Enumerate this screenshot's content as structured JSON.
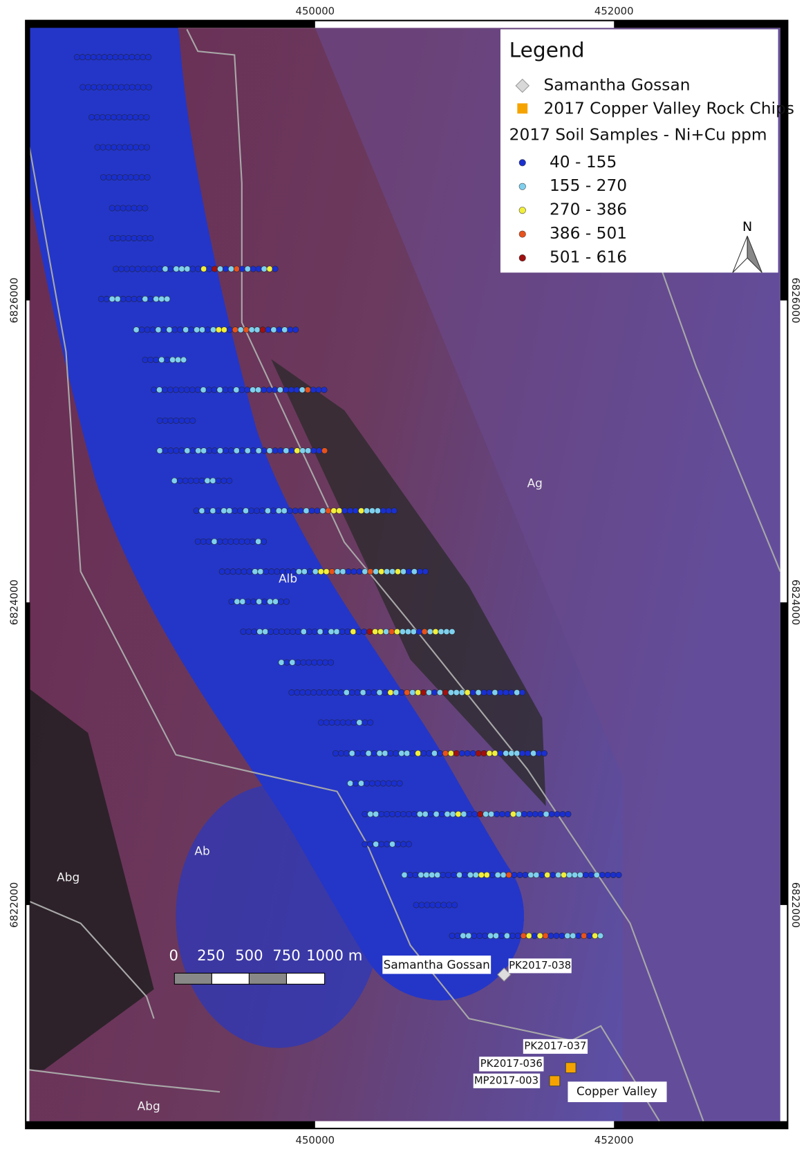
{
  "legend": {
    "title": "Legend",
    "point_items": [
      {
        "label": "Samantha Gossan",
        "color": "#d8d8d8"
      },
      {
        "label": "2017 Copper Valley Rock Chips",
        "color": "#f5a300"
      }
    ],
    "soil_title": "2017 Soil Samples - Ni+Cu ppm",
    "classes": [
      {
        "label": "40 - 155",
        "color": "#1a2fd0"
      },
      {
        "label": "155 - 270",
        "color": "#7fd0ee"
      },
      {
        "label": "270 - 386",
        "color": "#f2ef3c"
      },
      {
        "label": "386 - 501",
        "color": "#e8521c"
      },
      {
        "label": "501 - 616",
        "color": "#a01010"
      }
    ]
  },
  "grid": {
    "top": [
      "450000",
      "452000"
    ],
    "bottom": [
      "450000",
      "452000"
    ],
    "left": [
      "6826000",
      "6824000",
      "6822000"
    ],
    "right": [
      "6826000",
      "6824000",
      "6822000"
    ]
  },
  "north": "N",
  "scale_bar": [
    "0",
    "250",
    "500",
    "750",
    "1000 m"
  ],
  "geology": [
    "Ag",
    "Alb",
    "Ab",
    "Abg",
    "Abg"
  ],
  "sites": {
    "gossan_box": "Samantha Gossan",
    "gossan_id": "PK2017-038",
    "chip_ids": [
      "PK2017-037",
      "PK2017-036",
      "MP2017-003"
    ],
    "copper_valley": "Copper Valley"
  }
}
